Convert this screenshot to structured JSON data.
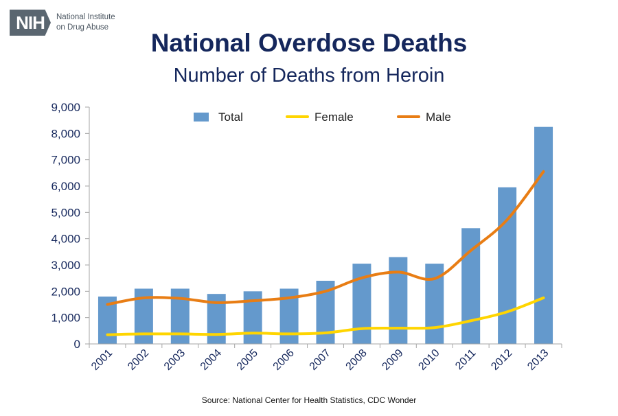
{
  "logo": {
    "mark": "NIH",
    "line1": "National Institute",
    "line2": "on Drug Abuse"
  },
  "title": "National Overdose Deaths",
  "subtitle": "Number of Deaths from Heroin",
  "source": "Source: National Center for Health Statistics, CDC Wonder",
  "colors": {
    "title": "#15275c",
    "total": "#6499cc",
    "female": "#ffd500",
    "male": "#e87d14"
  },
  "chart_data": {
    "type": "bar",
    "title": "National Overdose Deaths",
    "subtitle": "Number of Deaths from Heroin",
    "xlabel": "",
    "ylabel": "",
    "ylim": [
      0,
      9000
    ],
    "yticks": [
      "0",
      "1,000",
      "2,000",
      "3,000",
      "4,000",
      "5,000",
      "6,000",
      "7,000",
      "8,000",
      "9,000"
    ],
    "grid": false,
    "legend": "top",
    "categories": [
      "2001",
      "2002",
      "2003",
      "2004",
      "2005",
      "2006",
      "2007",
      "2008",
      "2009",
      "2010",
      "2011",
      "2012",
      "2013"
    ],
    "series": [
      {
        "name": "Total",
        "type": "bar",
        "color": "#6499cc",
        "values": [
          1800,
          2100,
          2100,
          1900,
          2000,
          2100,
          2400,
          3050,
          3300,
          3050,
          4400,
          5950,
          8250
        ]
      },
      {
        "name": "Female",
        "type": "line",
        "color": "#ffd500",
        "values": [
          350,
          380,
          380,
          360,
          410,
          380,
          420,
          580,
          600,
          620,
          880,
          1220,
          1750
        ]
      },
      {
        "name": "Male",
        "type": "line",
        "color": "#e87d14",
        "values": [
          1500,
          1750,
          1730,
          1570,
          1640,
          1750,
          2000,
          2510,
          2730,
          2480,
          3550,
          4720,
          6550
        ]
      }
    ]
  }
}
